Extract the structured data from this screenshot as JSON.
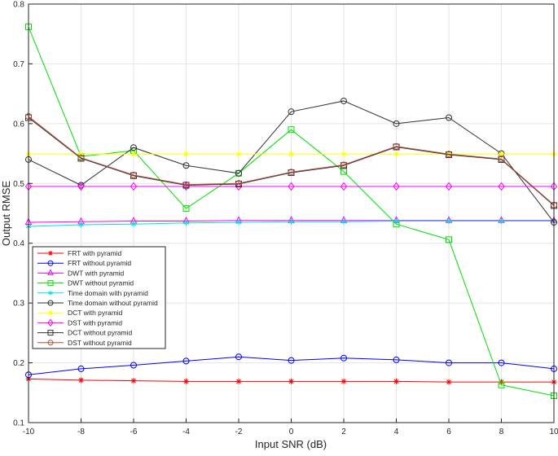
{
  "chart_data": {
    "type": "line",
    "title": "",
    "xlabel": "Input SNR (dB)",
    "ylabel": "Output RMSE",
    "xlim": [
      -10,
      10
    ],
    "ylim": [
      0.1,
      0.8
    ],
    "xticks": [
      -10,
      -8,
      -6,
      -4,
      -2,
      0,
      2,
      4,
      6,
      8,
      10
    ],
    "yticks": [
      0.1,
      0.2,
      0.3,
      0.4,
      0.5,
      0.6,
      0.7,
      0.8
    ],
    "grid": true,
    "legend_position": "bottom-left",
    "x": [
      -10,
      -8,
      -6,
      -4,
      -2,
      0,
      2,
      4,
      6,
      8,
      10
    ],
    "series": [
      {
        "name": "FRT with pyramid",
        "color": "#ff0000",
        "marker": "star",
        "values": [
          0.173,
          0.171,
          0.17,
          0.169,
          0.169,
          0.169,
          0.169,
          0.169,
          0.168,
          0.168,
          0.168
        ]
      },
      {
        "name": "FRT without pyramid",
        "color": "#0000ff",
        "marker": "circle",
        "values": [
          0.18,
          0.19,
          0.196,
          0.203,
          0.21,
          0.204,
          0.208,
          0.205,
          0.2,
          0.2,
          0.19
        ]
      },
      {
        "name": "DWT with pyramid",
        "color": "#ff00ff",
        "marker": "triangle",
        "values": [
          0.435,
          0.436,
          0.437,
          0.437,
          0.438,
          0.438,
          0.438,
          0.438,
          0.438,
          0.438,
          0.438
        ]
      },
      {
        "name": "DWT without pyramid",
        "color": "#00e000",
        "marker": "square",
        "values": [
          0.762,
          0.545,
          0.555,
          0.458,
          0.517,
          0.59,
          0.52,
          0.432,
          0.406,
          0.163,
          0.145
        ]
      },
      {
        "name": "Time domain with pyramid",
        "color": "#00e0e0",
        "marker": "asterisk",
        "values": [
          0.428,
          0.431,
          0.432,
          0.434,
          0.435,
          0.436,
          0.436,
          0.437,
          0.437,
          0.437,
          0.437
        ]
      },
      {
        "name": "Time domain without pyramid",
        "color": "#303030",
        "marker": "circle",
        "values": [
          0.54,
          0.497,
          0.56,
          0.53,
          0.517,
          0.62,
          0.638,
          0.6,
          0.61,
          0.55,
          0.435
        ]
      },
      {
        "name": "DCT with pyramid",
        "color": "#ffff00",
        "marker": "star",
        "values": [
          0.549,
          0.549,
          0.549,
          0.549,
          0.549,
          0.549,
          0.549,
          0.549,
          0.549,
          0.549,
          0.549
        ]
      },
      {
        "name": "DST with pyramid",
        "color": "#ff00ff",
        "marker": "diamond",
        "values": [
          0.495,
          0.495,
          0.495,
          0.495,
          0.495,
          0.495,
          0.495,
          0.495,
          0.495,
          0.495,
          0.495
        ]
      },
      {
        "name": "DCT without pyramid",
        "color": "#303030",
        "marker": "square",
        "values": [
          0.61,
          0.542,
          0.513,
          0.497,
          0.499,
          0.518,
          0.53,
          0.561,
          0.548,
          0.54,
          0.463
        ]
      },
      {
        "name": "DST without pyramid",
        "color": "#b04a3a",
        "marker": "circle",
        "values": [
          0.612,
          0.543,
          0.514,
          0.498,
          0.5,
          0.519,
          0.531,
          0.562,
          0.549,
          0.541,
          0.464
        ]
      }
    ]
  }
}
